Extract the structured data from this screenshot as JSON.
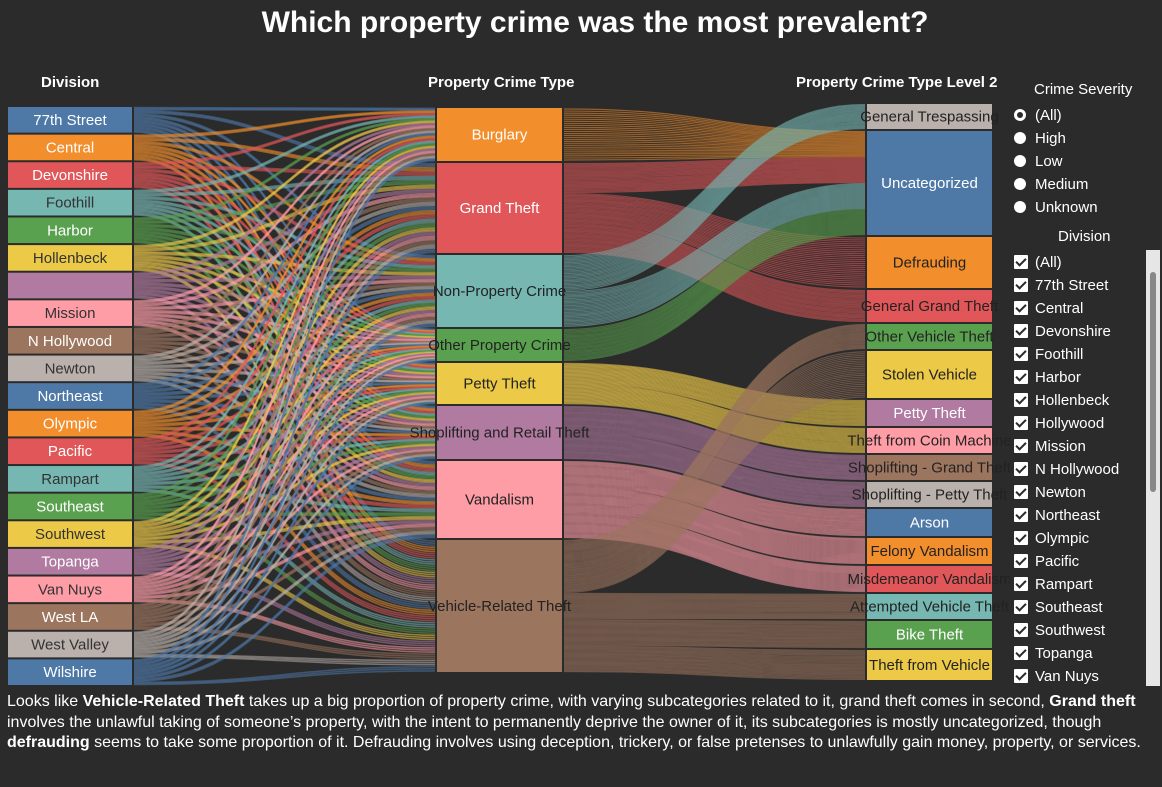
{
  "title": "Which property crime was the most prevalent?",
  "headers": {
    "division": "Division",
    "type": "Property Crime Type",
    "level2": "Property Crime Type Level 2"
  },
  "chart_data": {
    "type": "sankey",
    "divisions": [
      {
        "name": "77th Street",
        "color": "#4e79a7"
      },
      {
        "name": "Central",
        "color": "#f28e2b"
      },
      {
        "name": "Devonshire",
        "color": "#e15759"
      },
      {
        "name": "Foothill",
        "color": "#76b7b2"
      },
      {
        "name": "Harbor",
        "color": "#59a14f"
      },
      {
        "name": "Hollenbeck",
        "color": "#edc948"
      },
      {
        "name": "",
        "color": "#b07aa1"
      },
      {
        "name": "Mission",
        "color": "#ff9da7"
      },
      {
        "name": "N Hollywood",
        "color": "#9c755f"
      },
      {
        "name": "Newton",
        "color": "#bab0ac"
      },
      {
        "name": "Northeast",
        "color": "#4e79a7"
      },
      {
        "name": "Olympic",
        "color": "#f28e2b"
      },
      {
        "name": "Pacific",
        "color": "#e15759"
      },
      {
        "name": "Rampart",
        "color": "#76b7b2"
      },
      {
        "name": "Southeast",
        "color": "#59a14f"
      },
      {
        "name": "Southwest",
        "color": "#edc948"
      },
      {
        "name": "Topanga",
        "color": "#b07aa1"
      },
      {
        "name": "Van Nuys",
        "color": "#ff9da7"
      },
      {
        "name": "West LA",
        "color": "#9c755f"
      },
      {
        "name": "West Valley",
        "color": "#bab0ac"
      },
      {
        "name": "Wilshire",
        "color": "#4e79a7"
      }
    ],
    "crime_types": [
      {
        "name": "Burglary",
        "color": "#f28e2b"
      },
      {
        "name": "Grand Theft",
        "color": "#e15759"
      },
      {
        "name": "Non-Property Crime",
        "color": "#76b7b2"
      },
      {
        "name": "Other Property Crime",
        "color": "#59a14f"
      },
      {
        "name": "Petty Theft",
        "color": "#edc948"
      },
      {
        "name": "Shoplifting and Retail Theft",
        "color": "#b07aa1"
      },
      {
        "name": "Vandalism",
        "color": "#ff9da7"
      },
      {
        "name": "Vehicle-Related Theft",
        "color": "#9c755f"
      }
    ],
    "level2_types": [
      {
        "name": "General Trespassing",
        "color": "#bab0ac"
      },
      {
        "name": "Uncategorized",
        "color": "#4e79a7"
      },
      {
        "name": "Defrauding",
        "color": "#f28e2b"
      },
      {
        "name": "General Grand Theft",
        "color": "#e15759"
      },
      {
        "name": "Other Vehicle Theft",
        "color": "#59a14f"
      },
      {
        "name": "Stolen Vehicle",
        "color": "#edc948"
      },
      {
        "name": "Petty Theft",
        "color": "#b07aa1"
      },
      {
        "name": "Theft from Coin Machine",
        "color": "#ff9da7"
      },
      {
        "name": "Shoplifting - Grand Theft",
        "color": "#9c755f"
      },
      {
        "name": "Shoplifting - Petty Theft",
        "color": "#bab0ac"
      },
      {
        "name": "Arson",
        "color": "#4e79a7"
      },
      {
        "name": "Felony Vandalism",
        "color": "#f28e2b"
      },
      {
        "name": "Misdemeanor Vandalism",
        "color": "#e15759"
      },
      {
        "name": "Attempted Vehicle Theft",
        "color": "#76b7b2"
      },
      {
        "name": "Bike Theft",
        "color": "#59a14f"
      },
      {
        "name": "Theft from Vehicle",
        "color": "#edc948"
      }
    ],
    "type_shares": [
      {
        "type": "Burglary",
        "share": 0.1
      },
      {
        "type": "Grand Theft",
        "share": 0.16
      },
      {
        "type": "Non-Property Crime",
        "share": 0.12
      },
      {
        "type": "Other Property Crime",
        "share": 0.05
      },
      {
        "type": "Petty Theft",
        "share": 0.07
      },
      {
        "type": "Shoplifting and Retail Theft",
        "share": 0.09
      },
      {
        "type": "Vandalism",
        "share": 0.13
      },
      {
        "type": "Vehicle-Related Theft",
        "share": 0.23
      }
    ],
    "type_to_level2": [
      {
        "from": "Burglary",
        "to": [
          "Uncategorized"
        ]
      },
      {
        "from": "Grand Theft",
        "to": [
          "Uncategorized",
          "Defrauding",
          "General Grand Theft"
        ]
      },
      {
        "from": "Non-Property Crime",
        "to": [
          "General Trespassing",
          "Uncategorized"
        ]
      },
      {
        "from": "Other Property Crime",
        "to": [
          "Uncategorized"
        ]
      },
      {
        "from": "Petty Theft",
        "to": [
          "Petty Theft",
          "Theft from Coin Machine"
        ]
      },
      {
        "from": "Shoplifting and Retail Theft",
        "to": [
          "Shoplifting - Grand Theft",
          "Shoplifting - Petty Theft"
        ]
      },
      {
        "from": "Vandalism",
        "to": [
          "Arson",
          "Felony Vandalism",
          "Misdemeanor Vandalism"
        ]
      },
      {
        "from": "Vehicle-Related Theft",
        "to": [
          "Other Vehicle Theft",
          "Stolen Vehicle",
          "Attempted Vehicle Theft",
          "Bike Theft",
          "Theft from Vehicle"
        ]
      }
    ]
  },
  "filters": {
    "severity_title": "Crime Severity",
    "severity_options": [
      {
        "label": "(All)",
        "selected": true
      },
      {
        "label": "High",
        "selected": false
      },
      {
        "label": "Low",
        "selected": false
      },
      {
        "label": "Medium",
        "selected": false
      },
      {
        "label": "Unknown",
        "selected": false
      }
    ],
    "division_title": "Division",
    "division_options": [
      {
        "label": "(All)",
        "checked": true
      },
      {
        "label": "77th Street",
        "checked": true
      },
      {
        "label": "Central",
        "checked": true
      },
      {
        "label": "Devonshire",
        "checked": true
      },
      {
        "label": "Foothill",
        "checked": true
      },
      {
        "label": "Harbor",
        "checked": true
      },
      {
        "label": "Hollenbeck",
        "checked": true
      },
      {
        "label": "Hollywood",
        "checked": true
      },
      {
        "label": "Mission",
        "checked": true
      },
      {
        "label": "N Hollywood",
        "checked": true
      },
      {
        "label": "Newton",
        "checked": true
      },
      {
        "label": "Northeast",
        "checked": true
      },
      {
        "label": "Olympic",
        "checked": true
      },
      {
        "label": "Pacific",
        "checked": true
      },
      {
        "label": "Rampart",
        "checked": true
      },
      {
        "label": "Southeast",
        "checked": true
      },
      {
        "label": "Southwest",
        "checked": true
      },
      {
        "label": "Topanga",
        "checked": true
      },
      {
        "label": "Van Nuys",
        "checked": true
      }
    ]
  },
  "caption": {
    "p1": "Looks like ",
    "b1": "Vehicle-Related Theft",
    "p2": " takes up a big proportion of property crime, with varying subcategories related to it, grand theft comes in second, ",
    "b2": "Grand theft",
    "p3": " involves the unlawful taking of someone’s property, with the intent to permanently deprive the owner of it, its subcategories is mostly uncategorized, though ",
    "b3": "defrauding",
    "p4": " seems to take some proportion of it. Defrauding involves using deception, trickery, or false pretenses to unlawfully gain money, property, or services."
  }
}
